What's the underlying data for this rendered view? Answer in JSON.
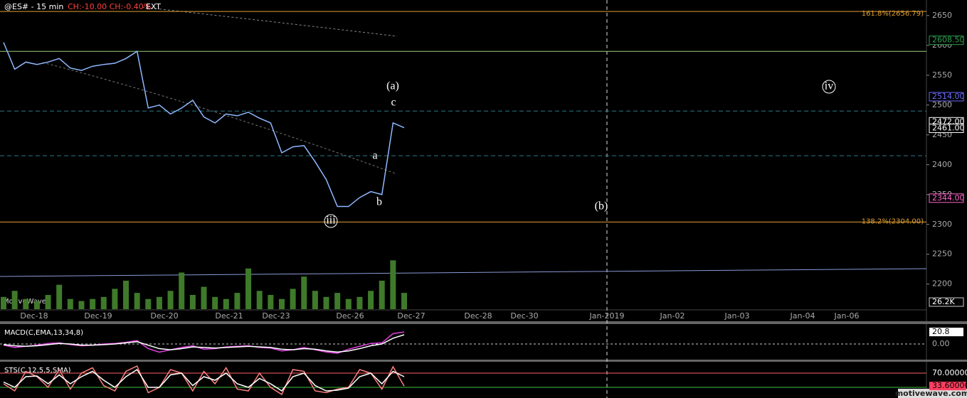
{
  "chart_data": [
    {
      "type": "line",
      "title": "@ES# - 15 min",
      "change_label": "CH:-10.00  CH:-0.40%",
      "session": "EXT",
      "watermark": "MotiveWave",
      "site": "motivewave.com",
      "color": "#8fb8ff",
      "values": [
        2605,
        2560,
        2572,
        2568,
        2572,
        2578,
        2562,
        2558,
        2565,
        2568,
        2570,
        2578,
        2590,
        2495,
        2500,
        2485,
        2495,
        2508,
        2480,
        2470,
        2485,
        2482,
        2488,
        2478,
        2470,
        2420,
        2430,
        2432,
        2405,
        2375,
        2330,
        2330,
        2345,
        2355,
        2350,
        2470,
        2462
      ],
      "ylim": [
        2158,
        2676
      ],
      "yticks": [
        2200,
        2250,
        2300,
        2350,
        2400,
        2450,
        2500,
        2550,
        2600,
        2650
      ],
      "xtick_labels": [
        "Dec-18",
        "Dec-19",
        "Dec-20",
        "Dec-21",
        "Dec-23",
        "Dec-26",
        "Dec-27",
        "Dec-28",
        "Dec-30",
        "Jan-2019",
        "Jan-02",
        "Jan-03",
        "Jan-04",
        "Jan-06"
      ],
      "price_labels": [
        {
          "value": 2608.5,
          "label": "2608.50",
          "color": "#2e9e4e"
        },
        {
          "value": 2514,
          "label": "2514.00",
          "color": "#6a6aff"
        },
        {
          "value": 2472,
          "label": "2472.00",
          "color": "#ffffff"
        },
        {
          "value": 2461,
          "label": "2461.00",
          "color": "#ffffff"
        },
        {
          "value": 2344,
          "label": "2344.00",
          "color": "#ff66cc"
        }
      ],
      "levels": [
        {
          "value": 2656.79,
          "label": "161.8%(2656.79)",
          "color": "#e0a030",
          "dash": false
        },
        {
          "value": 2304,
          "label": "138.2%(2304.00)",
          "color": "#e0a030",
          "dash": false
        },
        {
          "value": 2590,
          "color": "#9acd7a",
          "dash": false
        },
        {
          "value": 2490,
          "color": "#2a7a8a",
          "dash": true
        },
        {
          "value": 2415,
          "color": "#2a7a8a",
          "dash": true
        }
      ],
      "annotations": [
        "(a)",
        "c",
        "a",
        "b",
        "(b)",
        "iii",
        "iv"
      ]
    },
    {
      "type": "bar",
      "color": "#3f7a2a",
      "value_label": "26.2K",
      "ylim": [
        0,
        26.2
      ],
      "values": [
        6,
        9,
        5,
        4,
        7,
        12,
        5,
        4,
        5,
        6,
        10,
        14,
        8,
        5,
        6,
        9,
        18,
        7,
        11,
        6,
        5,
        8,
        20,
        9,
        7,
        5,
        10,
        16,
        9,
        6,
        8,
        5,
        6,
        9,
        14,
        24,
        8
      ]
    },
    {
      "type": "line",
      "title": "MACD(C,EMA,13,34,8)",
      "ylim": [
        -27,
        32
      ],
      "yticks": [
        {
          "value": 0,
          "label": "0.00"
        }
      ],
      "current": 20.8,
      "series": [
        {
          "color": "#e040e0",
          "values": [
            -2,
            -6,
            -4,
            -2,
            1,
            2,
            -1,
            -3,
            -2,
            0,
            1,
            3,
            6,
            -8,
            -14,
            -10,
            -6,
            -3,
            -9,
            -8,
            -5,
            -4,
            -3,
            -6,
            -7,
            -12,
            -10,
            -6,
            -10,
            -14,
            -16,
            -9,
            -4,
            1,
            2,
            18,
            20.8
          ]
        },
        {
          "color": "#ffffff",
          "values": [
            -1,
            -3,
            -4,
            -3,
            -1,
            1,
            0,
            -2,
            -2,
            -1,
            0,
            2,
            4,
            -2,
            -8,
            -10,
            -8,
            -5,
            -6,
            -7,
            -6,
            -5,
            -4,
            -5,
            -6,
            -9,
            -10,
            -8,
            -9,
            -12,
            -14,
            -12,
            -8,
            -3,
            0,
            10,
            16
          ]
        }
      ]
    },
    {
      "type": "line",
      "title": "STS(C,12,5,5,SMA)",
      "ylim": [
        0,
        100
      ],
      "yticks": [
        {
          "value": 70,
          "label": "70.00000"
        }
      ],
      "current": {
        "value": 33.6,
        "label": "33.60000"
      },
      "levels": [
        {
          "value": 70,
          "color": "#ff6060"
        },
        {
          "value": 30,
          "color": "#40c040"
        }
      ],
      "series": [
        {
          "color": "#ff8080",
          "values": [
            40,
            20,
            75,
            60,
            30,
            80,
            25,
            70,
            85,
            35,
            20,
            75,
            90,
            15,
            30,
            80,
            70,
            20,
            75,
            40,
            85,
            25,
            20,
            70,
            30,
            10,
            80,
            75,
            20,
            15,
            25,
            30,
            80,
            70,
            25,
            88,
            33.6
          ]
        },
        {
          "color": "#ffffff",
          "values": [
            45,
            30,
            60,
            62,
            40,
            65,
            40,
            60,
            75,
            50,
            30,
            60,
            80,
            30,
            30,
            65,
            70,
            35,
            60,
            50,
            70,
            40,
            30,
            55,
            40,
            20,
            60,
            70,
            35,
            20,
            22,
            28,
            60,
            70,
            40,
            75,
            60
          ]
        }
      ]
    }
  ]
}
